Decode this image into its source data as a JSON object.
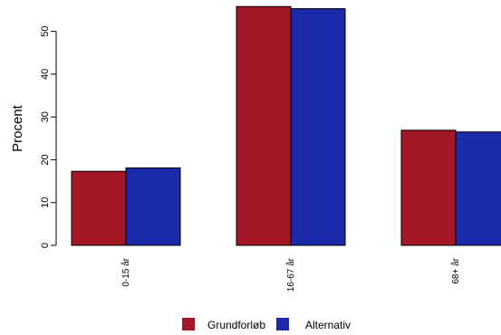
{
  "chart_data": {
    "type": "bar",
    "title": "",
    "xlabel": "",
    "ylabel": "Procent",
    "ylim": [
      0,
      55
    ],
    "yticks": [
      0,
      10,
      20,
      30,
      40,
      50
    ],
    "categories": [
      "0-15 år",
      "16-67 år",
      "68+ år"
    ],
    "series": [
      {
        "name": "Grundforløb",
        "color": "#A31726",
        "values": [
          17.3,
          55.8,
          26.9
        ]
      },
      {
        "name": "Alternativ",
        "color": "#1A2AA8",
        "values": [
          18.1,
          55.3,
          26.5
        ]
      }
    ],
    "grid": false,
    "legend_position": "bottom"
  }
}
